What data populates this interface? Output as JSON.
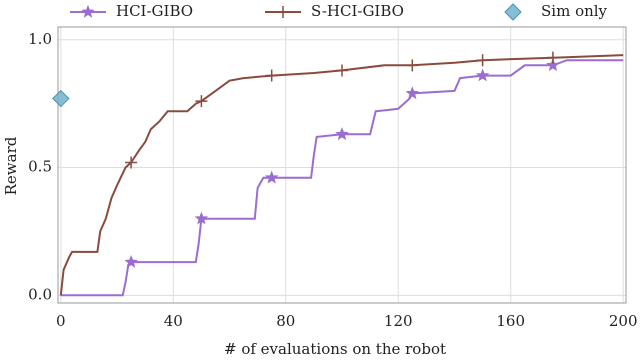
{
  "chart_data": {
    "type": "line",
    "xlabel": "# of evaluations on the robot",
    "ylabel": "Reward",
    "xlim": [
      -1,
      201
    ],
    "ylim": [
      -0.03,
      1.05
    ],
    "xticks": [
      0,
      40,
      80,
      120,
      160,
      200
    ],
    "yticks": [
      {
        "value": 0,
        "label": "0.0"
      },
      {
        "value": 0.5,
        "label": "0.5"
      },
      {
        "value": 1,
        "label": "1.0"
      }
    ],
    "grid": true,
    "legend": "top",
    "marker_every": 25,
    "series": [
      {
        "name": "HCI-GIBO",
        "color": "#9b6dd0",
        "marker": "star",
        "x": [
          0,
          22,
          23,
          24,
          25,
          48,
          49,
          50,
          69,
          70,
          72,
          75,
          89,
          90,
          91,
          100,
          110,
          112,
          120,
          124,
          125,
          140,
          142,
          150,
          160,
          165,
          175,
          180,
          200
        ],
        "values": [
          0,
          0,
          0.05,
          0.12,
          0.13,
          0.13,
          0.2,
          0.3,
          0.3,
          0.42,
          0.46,
          0.46,
          0.46,
          0.55,
          0.62,
          0.63,
          0.63,
          0.72,
          0.73,
          0.77,
          0.79,
          0.8,
          0.85,
          0.86,
          0.86,
          0.9,
          0.9,
          0.92,
          0.92
        ]
      },
      {
        "name": "S-HCI-GIBO",
        "color": "#8a4b3d",
        "marker": "plus",
        "x": [
          0,
          1,
          3,
          4,
          13,
          14,
          16,
          18,
          20,
          23,
          25,
          28,
          30,
          32,
          35,
          38,
          45,
          48,
          50,
          55,
          60,
          65,
          75,
          90,
          100,
          115,
          125,
          140,
          150,
          175,
          200
        ],
        "values": [
          0,
          0.1,
          0.15,
          0.17,
          0.17,
          0.25,
          0.3,
          0.38,
          0.43,
          0.5,
          0.52,
          0.57,
          0.6,
          0.65,
          0.68,
          0.72,
          0.72,
          0.75,
          0.76,
          0.8,
          0.84,
          0.85,
          0.86,
          0.87,
          0.88,
          0.9,
          0.9,
          0.91,
          0.92,
          0.93,
          0.94
        ]
      },
      {
        "name": "Sim only",
        "color": "#6aaecb",
        "marker": "diamond",
        "scatter": true,
        "x": [
          0
        ],
        "values": [
          0.77
        ]
      }
    ]
  }
}
